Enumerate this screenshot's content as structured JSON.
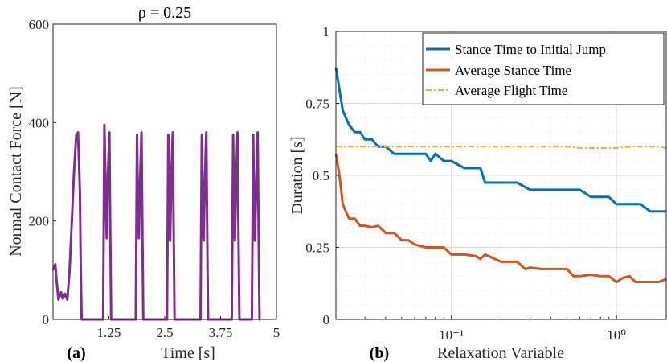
{
  "chart_data": [
    {
      "type": "line",
      "title": "ρ = 0.25",
      "panel_label": "(a)",
      "xlabel": "Time [s]",
      "ylabel": "Normal Contact Force [N]",
      "xlim": [
        0,
        5
      ],
      "ylim": [
        0,
        600
      ],
      "xticks": [
        1.25,
        2.5,
        3.75,
        5
      ],
      "xtick_labels": [
        "1.25",
        "2.5",
        "3.75",
        "5"
      ],
      "yticks": [
        0,
        200,
        400,
        600
      ],
      "ytick_labels": [
        "0",
        "200",
        "400",
        "600"
      ],
      "grid": false,
      "series": [
        {
          "name": "Normal contact force",
          "color": "#7E2F8E",
          "x": [
            0,
            0.05,
            0.08,
            0.12,
            0.18,
            0.22,
            0.27,
            0.32,
            0.37,
            0.42,
            0.47,
            0.52,
            0.56,
            0.6,
            0.62,
            0.64,
            0.65,
            1.12,
            1.15,
            1.18,
            1.2,
            1.23,
            1.26,
            1.28,
            1.3,
            1.31,
            1.85,
            1.88,
            1.9,
            1.92,
            1.95,
            1.98,
            2.0,
            2.02,
            2.03,
            2.55,
            2.58,
            2.6,
            2.62,
            2.65,
            2.68,
            2.7,
            2.72,
            2.73,
            3.3,
            3.33,
            3.35,
            3.37,
            3.4,
            3.43,
            3.45,
            3.47,
            3.48,
            4.0,
            4.03,
            4.05,
            4.07,
            4.1,
            4.13,
            4.15,
            4.17,
            4.18,
            4.45,
            4.48,
            4.5,
            4.52,
            4.55,
            4.58,
            4.6,
            4.62,
            4.63
          ],
          "y": [
            100,
            112,
            80,
            40,
            55,
            42,
            52,
            40,
            100,
            200,
            300,
            375,
            380,
            260,
            100,
            0,
            0,
            0,
            395,
            250,
            165,
            300,
            380,
            180,
            0,
            0,
            0,
            375,
            230,
            165,
            290,
            380,
            180,
            0,
            0,
            0,
            375,
            230,
            160,
            300,
            380,
            180,
            0,
            0,
            0,
            375,
            230,
            160,
            290,
            380,
            180,
            0,
            0,
            0,
            375,
            230,
            160,
            290,
            380,
            180,
            0,
            0,
            0,
            375,
            230,
            160,
            290,
            380,
            180,
            0,
            0
          ]
        }
      ]
    },
    {
      "type": "line",
      "panel_label": "(b)",
      "xlabel": "Relaxation Variable",
      "ylabel": "Duration [s]",
      "xscale": "log",
      "xlim": [
        0.02,
        2.0
      ],
      "ylim": [
        0,
        1
      ],
      "xticks": [
        0.1,
        1
      ],
      "xtick_labels": [
        "10⁻¹",
        "10⁰"
      ],
      "yticks": [
        0,
        0.25,
        0.5,
        0.75,
        1
      ],
      "ytick_labels": [
        "0",
        "0.25",
        "0.5",
        "0.75",
        "1"
      ],
      "grid": true,
      "legend_position": "top-right",
      "series": [
        {
          "name": "Stance Time to Initial Jump",
          "color": "#0072BD",
          "dash": "solid",
          "x": [
            0.02,
            0.022,
            0.024,
            0.026,
            0.028,
            0.03,
            0.033,
            0.036,
            0.04,
            0.045,
            0.05,
            0.06,
            0.07,
            0.075,
            0.08,
            0.09,
            0.1,
            0.12,
            0.15,
            0.16,
            0.2,
            0.25,
            0.3,
            0.4,
            0.5,
            0.6,
            0.7,
            0.8,
            0.9,
            1.0,
            1.2,
            1.4,
            1.6,
            2.0
          ],
          "y": [
            0.875,
            0.725,
            0.675,
            0.65,
            0.65,
            0.625,
            0.625,
            0.6,
            0.6,
            0.575,
            0.575,
            0.575,
            0.575,
            0.55,
            0.575,
            0.55,
            0.55,
            0.525,
            0.525,
            0.475,
            0.475,
            0.475,
            0.45,
            0.45,
            0.45,
            0.45,
            0.425,
            0.425,
            0.425,
            0.4,
            0.4,
            0.4,
            0.375,
            0.375
          ]
        },
        {
          "name": "Average Stance Time",
          "color": "#D95319",
          "dash": "solid",
          "x": [
            0.02,
            0.021,
            0.022,
            0.024,
            0.026,
            0.028,
            0.03,
            0.033,
            0.036,
            0.04,
            0.045,
            0.05,
            0.055,
            0.06,
            0.07,
            0.08,
            0.09,
            0.1,
            0.12,
            0.14,
            0.15,
            0.16,
            0.2,
            0.25,
            0.28,
            0.3,
            0.35,
            0.4,
            0.5,
            0.55,
            0.6,
            0.7,
            0.8,
            0.9,
            1.0,
            1.1,
            1.2,
            1.3,
            1.4,
            1.6,
            1.8,
            2.0
          ],
          "y": [
            0.575,
            0.5,
            0.4,
            0.35,
            0.35,
            0.325,
            0.325,
            0.32,
            0.325,
            0.3,
            0.3,
            0.275,
            0.275,
            0.26,
            0.25,
            0.25,
            0.25,
            0.225,
            0.225,
            0.22,
            0.21,
            0.225,
            0.2,
            0.2,
            0.175,
            0.18,
            0.175,
            0.175,
            0.175,
            0.15,
            0.15,
            0.155,
            0.15,
            0.15,
            0.13,
            0.145,
            0.15,
            0.13,
            0.13,
            0.13,
            0.13,
            0.14
          ]
        },
        {
          "name": "Average Flight Time",
          "color": "#EDB120",
          "dash": "dashdot",
          "x": [
            0.02,
            0.05,
            0.1,
            0.2,
            0.3,
            0.5,
            0.6,
            0.7,
            0.8,
            0.9,
            1.0,
            1.2,
            1.5,
            1.8,
            2.0
          ],
          "y": [
            0.6,
            0.6,
            0.6,
            0.6,
            0.6,
            0.6,
            0.595,
            0.595,
            0.595,
            0.595,
            0.595,
            0.6,
            0.6,
            0.6,
            0.595
          ]
        }
      ]
    }
  ]
}
